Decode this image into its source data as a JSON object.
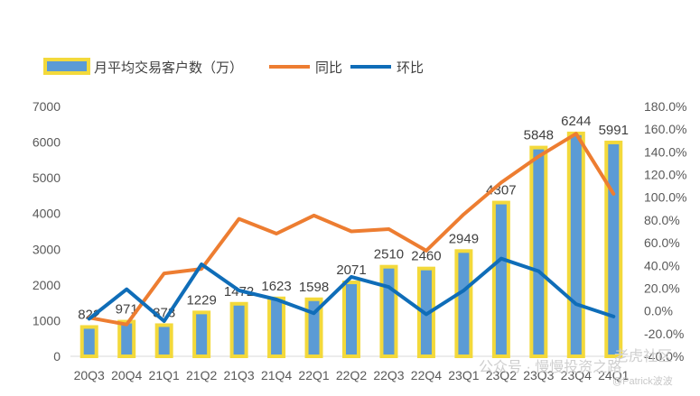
{
  "chart_data": {
    "type": "bar",
    "categories": [
      "20Q3",
      "20Q4",
      "21Q1",
      "21Q2",
      "21Q3",
      "21Q4",
      "22Q1",
      "22Q2",
      "22Q3",
      "22Q4",
      "23Q1",
      "23Q2",
      "23Q3",
      "23Q4",
      "24Q1"
    ],
    "series": [
      {
        "name": "月平均交易客户数（万）",
        "type": "bar",
        "axis": "left",
        "values": [
          822,
          971,
          873,
          1229,
          1472,
          1623,
          1598,
          2071,
          2510,
          2460,
          2949,
          4307,
          5848,
          6244,
          5991
        ],
        "labels": [
          "822",
          "971",
          "873",
          "1229",
          "1472",
          "1623",
          "1598",
          "2071",
          "2510",
          "2460",
          "2949",
          "4307",
          "5848",
          "6244",
          "5991"
        ]
      },
      {
        "name": "同比",
        "type": "line",
        "axis": "right",
        "values": [
          -6,
          -12,
          33,
          37,
          81,
          68,
          84,
          70,
          72,
          53,
          85,
          113,
          136,
          156,
          103
        ]
      },
      {
        "name": "环比",
        "type": "line",
        "axis": "right",
        "values": [
          -7,
          19,
          -9,
          41,
          18,
          10,
          -2,
          30,
          21,
          -3,
          18,
          46,
          35,
          6,
          -5
        ]
      }
    ],
    "y_left": {
      "min": 0,
      "max": 7000,
      "step": 1000,
      "ticks": [
        "0",
        "1000",
        "2000",
        "3000",
        "4000",
        "5000",
        "6000",
        "7000"
      ]
    },
    "y_right": {
      "min": -40,
      "max": 180,
      "step": 20,
      "ticks": [
        "-40.0%",
        "-20.0%",
        "0.0%",
        "20.0%",
        "40.0%",
        "60.0%",
        "80.0%",
        "100.0%",
        "120.0%",
        "140.0%",
        "160.0%",
        "180.0%"
      ]
    },
    "legend_position": "top-left",
    "grid": false,
    "colors": {
      "bar_fill": "#5b9bd5",
      "bar_border": "#f3d93b",
      "yoy": "#ed7d31",
      "mom": "#0f6db8"
    }
  },
  "watermark": {
    "brand": "公众号 · 慢慢投资之路",
    "site": "老虎社区",
    "author": "@Patrick波波"
  }
}
